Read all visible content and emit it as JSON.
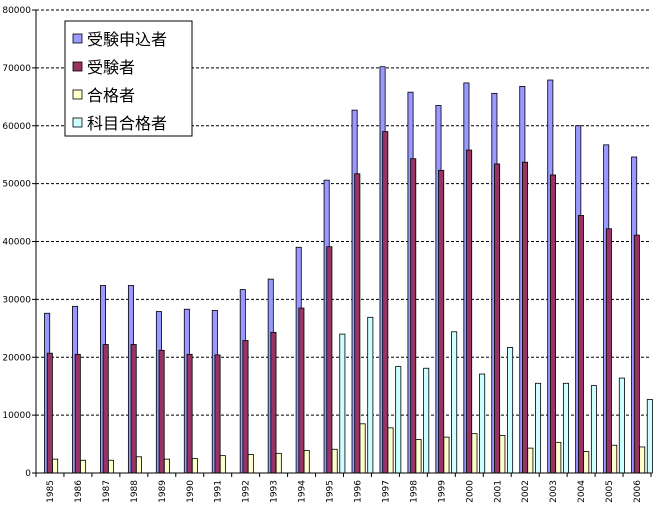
{
  "chart_data": {
    "type": "bar",
    "categories": [
      "1985",
      "1986",
      "1987",
      "1988",
      "1989",
      "1990",
      "1991",
      "1992",
      "1993",
      "1994",
      "1995",
      "1996",
      "1997",
      "1998",
      "1999",
      "2000",
      "2001",
      "2002",
      "2003",
      "2004",
      "2005",
      "2006"
    ],
    "series": [
      {
        "name": "受験申込者",
        "color": "#9999FF",
        "values": [
          27600,
          28800,
          32400,
          32400,
          27900,
          28300,
          28100,
          31700,
          33500,
          39000,
          50600,
          62700,
          70200,
          65800,
          63500,
          67400,
          65600,
          66800,
          67900,
          60000,
          56700,
          54600
        ]
      },
      {
        "name": "受験者",
        "color": "#993366",
        "values": [
          20700,
          20500,
          22200,
          22200,
          21200,
          20500,
          20400,
          22900,
          24300,
          28500,
          39100,
          51700,
          59000,
          54300,
          52300,
          55800,
          53400,
          53700,
          51500,
          44500,
          42200,
          41100
        ]
      },
      {
        "name": "合格者",
        "color": "#FFFFCC",
        "values": [
          2400,
          2200,
          2200,
          2800,
          2400,
          2500,
          3000,
          3200,
          3400,
          3900,
          4100,
          8500,
          7800,
          5800,
          6200,
          6800,
          6500,
          4300,
          5300,
          3700,
          4800,
          4500
        ]
      },
      {
        "name": "科目合格者",
        "color": "#CCFFFF",
        "values": [
          0,
          0,
          0,
          0,
          0,
          0,
          0,
          0,
          0,
          0,
          24000,
          26900,
          18400,
          18100,
          24400,
          17100,
          21700,
          15500,
          15500,
          15100,
          16400,
          12700
        ]
      }
    ],
    "ylim": [
      0,
      80000
    ],
    "yticks": [
      "0",
      "10000",
      "20000",
      "30000",
      "40000",
      "50000",
      "60000",
      "70000",
      "80000"
    ],
    "grid": true,
    "legend_placement": "top-left"
  }
}
